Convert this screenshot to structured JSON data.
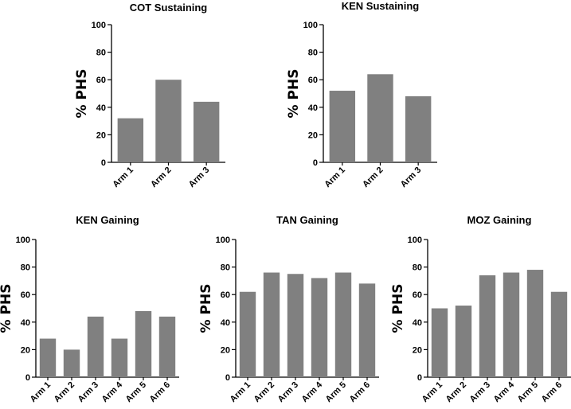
{
  "chart_data": [
    {
      "type": "bar",
      "title": "COT Sustaining",
      "xlabel": "",
      "ylabel": "% PHS",
      "categories": [
        "Arm 1",
        "Arm 2",
        "Arm 3"
      ],
      "values": [
        32,
        60,
        44
      ],
      "ylim": [
        0,
        100
      ],
      "yticks": [
        "0",
        "20",
        "40",
        "60",
        "80",
        "100"
      ],
      "color": "#808080"
    },
    {
      "type": "bar",
      "title": "KEN Sustaining",
      "xlabel": "",
      "ylabel": "% PHS",
      "categories": [
        "Arm 1",
        "Arm 2",
        "Arm 3"
      ],
      "values": [
        52,
        64,
        48
      ],
      "ylim": [
        0,
        100
      ],
      "yticks": [
        "0",
        "20",
        "40",
        "60",
        "80",
        "100"
      ],
      "color": "#808080"
    },
    {
      "type": "bar",
      "title": "KEN Gaining",
      "xlabel": "",
      "ylabel": "% PHS",
      "categories": [
        "Arm 1",
        "Arm 2",
        "Arm 3",
        "Arm 4",
        "Arm 5",
        "Arm 6"
      ],
      "values": [
        28,
        20,
        44,
        28,
        48,
        44
      ],
      "ylim": [
        0,
        100
      ],
      "yticks": [
        "0",
        "20",
        "40",
        "60",
        "80",
        "100"
      ],
      "color": "#808080"
    },
    {
      "type": "bar",
      "title": "TAN Gaining",
      "xlabel": "",
      "ylabel": "% PHS",
      "categories": [
        "Arm 1",
        "Arm 2",
        "Arm 3",
        "Arm 4",
        "Arm 5",
        "Arm 6"
      ],
      "values": [
        62,
        76,
        75,
        72,
        76,
        68
      ],
      "ylim": [
        0,
        100
      ],
      "yticks": [
        "0",
        "20",
        "40",
        "60",
        "80",
        "100"
      ],
      "color": "#808080"
    },
    {
      "type": "bar",
      "title": "MOZ Gaining",
      "xlabel": "",
      "ylabel": "% PHS",
      "categories": [
        "Arm 1",
        "Arm 2",
        "Arm 3",
        "Arm 4",
        "Arm 5",
        "Arm 6"
      ],
      "values": [
        50,
        52,
        74,
        76,
        78,
        62
      ],
      "ylim": [
        0,
        100
      ],
      "yticks": [
        "0",
        "20",
        "40",
        "60",
        "80",
        "100"
      ],
      "color": "#808080"
    }
  ]
}
